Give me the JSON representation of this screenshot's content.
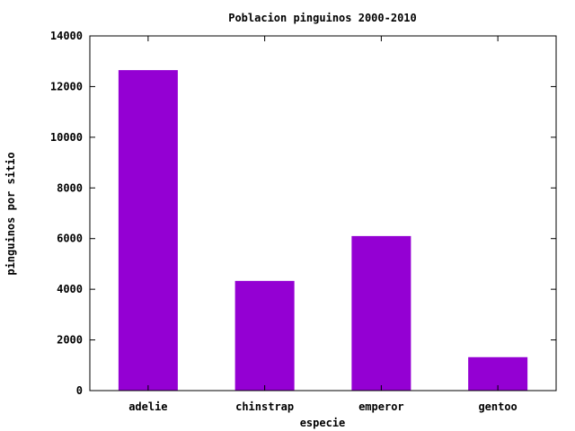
{
  "chart_data": {
    "type": "bar",
    "title": "Poblacion pinguinos 2000-2010",
    "xlabel": "especie",
    "ylabel": "pinguinos por sitio",
    "categories": [
      "adelie",
      "chinstrap",
      "emperor",
      "gentoo"
    ],
    "values": [
      12650,
      4330,
      6100,
      1320
    ],
    "ylim": [
      0,
      14000
    ],
    "yticks": [
      0,
      2000,
      4000,
      6000,
      8000,
      10000,
      12000,
      14000
    ],
    "grid": false,
    "legend": "none",
    "bar_color": "#9400d3",
    "axis_color": "#000000"
  }
}
